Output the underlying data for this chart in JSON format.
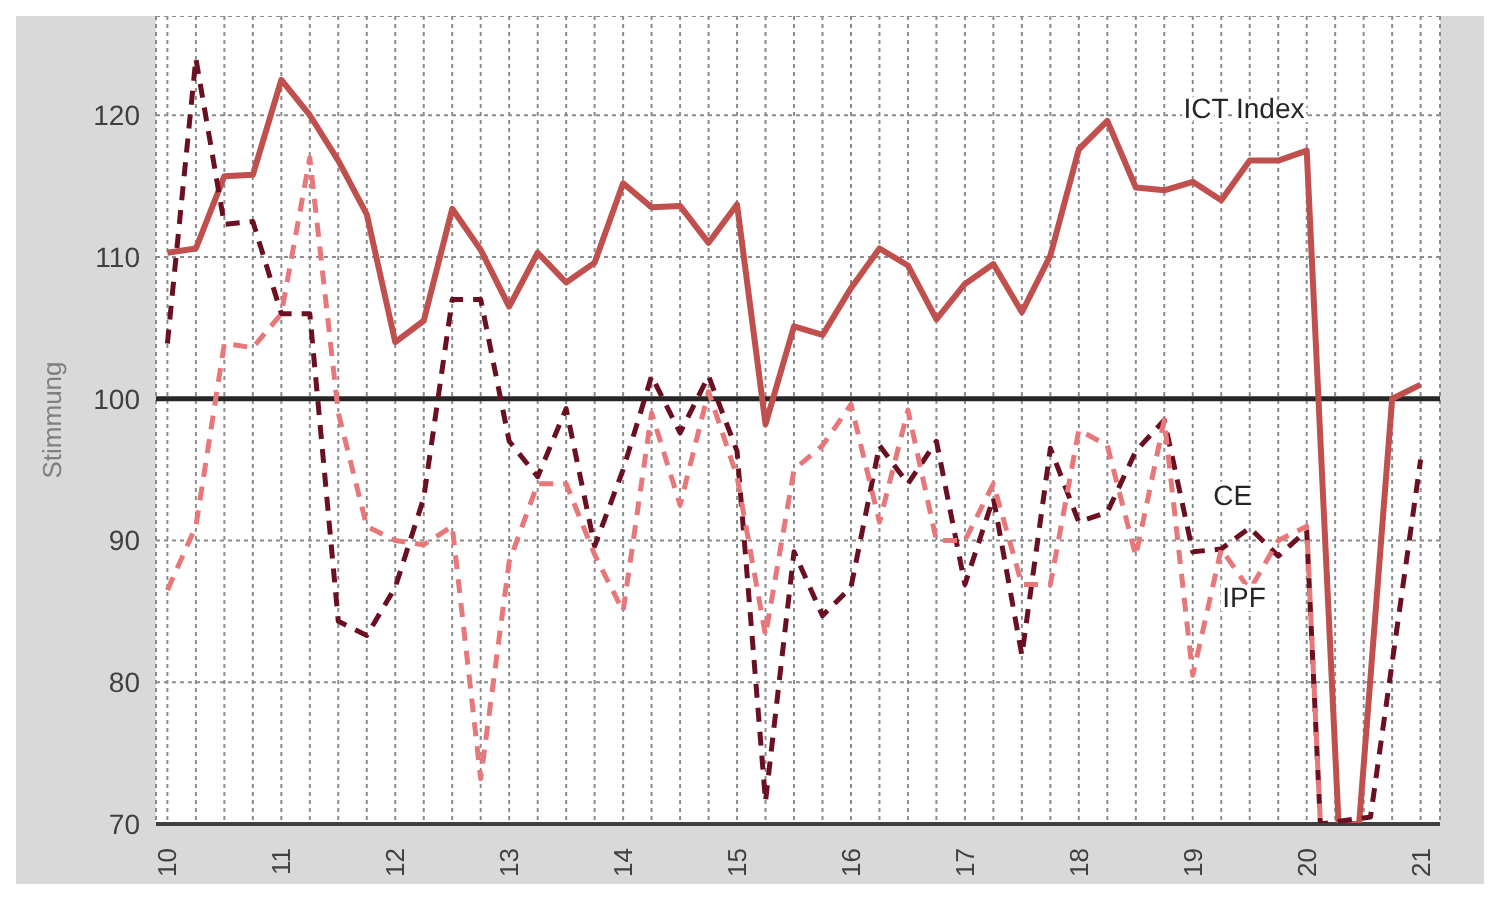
{
  "chart_data": {
    "type": "line",
    "ylabel": "Stimmung",
    "xlim": [
      2009.9,
      2021.17
    ],
    "ylim": [
      70,
      127
    ],
    "xticks": [
      {
        "value": 2010,
        "label": "10"
      },
      {
        "value": 2010.25,
        "label": null
      },
      {
        "value": 2010.5,
        "label": null
      },
      {
        "value": 2010.75,
        "label": null
      },
      {
        "value": 2011,
        "label": "11"
      },
      {
        "value": 2011.25,
        "label": null
      },
      {
        "value": 2011.5,
        "label": null
      },
      {
        "value": 2011.75,
        "label": null
      },
      {
        "value": 2012,
        "label": "12"
      },
      {
        "value": 2012.25,
        "label": null
      },
      {
        "value": 2012.5,
        "label": null
      },
      {
        "value": 2012.75,
        "label": null
      },
      {
        "value": 2013,
        "label": "13"
      },
      {
        "value": 2013.25,
        "label": null
      },
      {
        "value": 2013.5,
        "label": null
      },
      {
        "value": 2013.75,
        "label": null
      },
      {
        "value": 2014,
        "label": "14"
      },
      {
        "value": 2014.25,
        "label": null
      },
      {
        "value": 2014.5,
        "label": null
      },
      {
        "value": 2014.75,
        "label": null
      },
      {
        "value": 2015,
        "label": "15"
      },
      {
        "value": 2015.25,
        "label": null
      },
      {
        "value": 2015.5,
        "label": null
      },
      {
        "value": 2015.75,
        "label": null
      },
      {
        "value": 2016,
        "label": "16"
      },
      {
        "value": 2016.25,
        "label": null
      },
      {
        "value": 2016.5,
        "label": null
      },
      {
        "value": 2016.75,
        "label": null
      },
      {
        "value": 2017,
        "label": "17"
      },
      {
        "value": 2017.25,
        "label": null
      },
      {
        "value": 2017.5,
        "label": null
      },
      {
        "value": 2017.75,
        "label": null
      },
      {
        "value": 2018,
        "label": "18"
      },
      {
        "value": 2018.25,
        "label": null
      },
      {
        "value": 2018.5,
        "label": null
      },
      {
        "value": 2018.75,
        "label": null
      },
      {
        "value": 2019,
        "label": "19"
      },
      {
        "value": 2019.25,
        "label": null
      },
      {
        "value": 2019.5,
        "label": null
      },
      {
        "value": 2019.75,
        "label": null
      },
      {
        "value": 2020,
        "label": "20"
      },
      {
        "value": 2020.25,
        "label": null
      },
      {
        "value": 2020.5,
        "label": null
      },
      {
        "value": 2020.75,
        "label": null
      },
      {
        "value": 2021,
        "label": "21"
      }
    ],
    "yticks": [
      70,
      80,
      90,
      100,
      110,
      120
    ],
    "grid": true,
    "legend": false,
    "marker": "none",
    "ref_lines": [
      {
        "axis": "y",
        "value": 100,
        "color": "#262626"
      }
    ],
    "series": [
      {
        "name": "ICT Index",
        "color": "#c0504d",
        "line_style": "solid",
        "x": [
          2010,
          2010.25,
          2010.5,
          2010.75,
          2011,
          2011.25,
          2011.5,
          2011.75,
          2012,
          2012.25,
          2012.5,
          2012.75,
          2013,
          2013.25,
          2013.5,
          2013.75,
          2014,
          2014.25,
          2014.5,
          2014.75,
          2015,
          2015.25,
          2015.5,
          2015.75,
          2016,
          2016.25,
          2016.5,
          2016.75,
          2017,
          2017.25,
          2017.5,
          2017.75,
          2018,
          2018.25,
          2018.5,
          2018.75,
          2019,
          2019.25,
          2019.5,
          2019.75,
          2020,
          2020.28,
          2020.46,
          2020.75,
          2021
        ],
        "values": [
          110.3,
          110.6,
          115.7,
          115.8,
          122.5,
          120,
          116.8,
          113,
          104,
          105.5,
          113.4,
          110.5,
          106.5,
          110.3,
          108.2,
          109.6,
          115.2,
          113.5,
          113.6,
          111,
          113.7,
          98.2,
          105.1,
          104.5,
          107.8,
          110.6,
          109.4,
          105.6,
          108.1,
          109.5,
          106.1,
          110.1,
          117.6,
          119.6,
          114.9,
          114.7,
          115.3,
          114,
          116.8,
          116.8,
          117.5,
          70,
          70,
          100,
          101
        ]
      },
      {
        "name": "CE",
        "color": "#6b1020",
        "line_style": "dashed",
        "x": [
          2010,
          2010.25,
          2010.5,
          2010.75,
          2011,
          2011.25,
          2011.5,
          2011.75,
          2012,
          2012.25,
          2012.5,
          2012.75,
          2013,
          2013.25,
          2013.5,
          2013.75,
          2014,
          2014.25,
          2014.5,
          2014.75,
          2015,
          2015.25,
          2015.5,
          2015.75,
          2016,
          2016.25,
          2016.5,
          2016.75,
          2017,
          2017.25,
          2017.5,
          2017.75,
          2018,
          2018.25,
          2018.5,
          2018.75,
          2019,
          2019.25,
          2019.5,
          2019.75,
          2020,
          2020.12,
          2020.56,
          2021
        ],
        "values": [
          103.9,
          124,
          112.3,
          112.5,
          106,
          106,
          84.3,
          83.3,
          86.7,
          93,
          107,
          107,
          97,
          94.5,
          99.3,
          89.6,
          95,
          101.6,
          97.6,
          101.6,
          96.3,
          71.6,
          89.2,
          84.7,
          86.7,
          96.7,
          94,
          97,
          86.9,
          93,
          81.9,
          96.5,
          91.3,
          92,
          96.3,
          98.5,
          89.2,
          89.4,
          90.9,
          88.9,
          90.7,
          70,
          70.5,
          95.7
        ]
      },
      {
        "name": "IPF",
        "color": "#e8777a",
        "line_style": "dashed",
        "x": [
          2010,
          2010.25,
          2010.5,
          2010.75,
          2011,
          2011.25,
          2011.5,
          2011.75,
          2012,
          2012.25,
          2012.5,
          2012.75,
          2013,
          2013.25,
          2013.5,
          2013.75,
          2014,
          2014.25,
          2014.5,
          2014.75,
          2015,
          2015.25,
          2015.5,
          2015.75,
          2016,
          2016.25,
          2016.5,
          2016.75,
          2017,
          2017.25,
          2017.5,
          2017.75,
          2018,
          2018.25,
          2018.5,
          2018.75,
          2019,
          2019.25,
          2019.5,
          2019.75,
          2020,
          2020.12
        ],
        "values": [
          86.5,
          91,
          103.9,
          103.6,
          106,
          117,
          99,
          91,
          90,
          89.7,
          91,
          73.2,
          88.5,
          94,
          94,
          89,
          85,
          99,
          92.5,
          100.5,
          94.5,
          83.3,
          95,
          96.7,
          99.6,
          91.3,
          99.2,
          90,
          90,
          94,
          86.9,
          86.9,
          97.8,
          96.7,
          88.9,
          98.5,
          80.5,
          89.4,
          86.5,
          90,
          91,
          70
        ]
      }
    ]
  }
}
